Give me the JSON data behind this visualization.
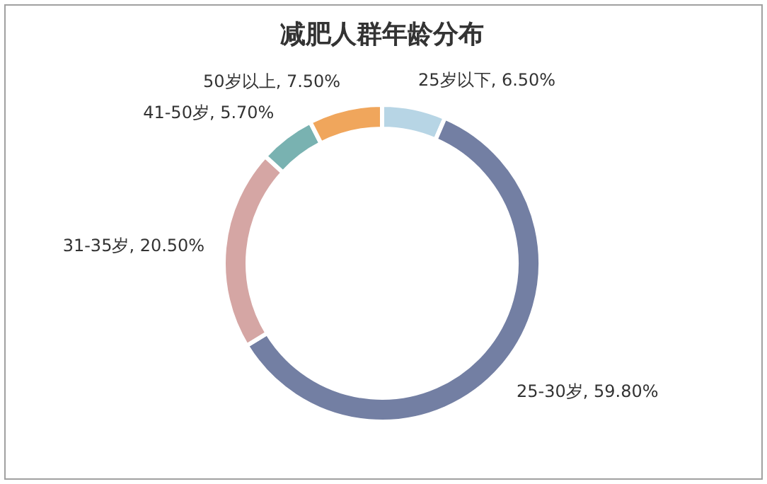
{
  "chart_data": {
    "type": "donut",
    "title": "减肥人群年龄分布",
    "categories": [
      "25岁以下",
      "25-30岁",
      "31-35岁",
      "41-50岁",
      "50岁以上"
    ],
    "values": [
      6.5,
      59.8,
      20.5,
      5.7,
      7.5
    ],
    "value_labels": [
      "6.50%",
      "59.80%",
      "20.50%",
      "5.70%",
      "7.50%"
    ],
    "colors": [
      "#b7d5e5",
      "#737fa3",
      "#d5a6a4",
      "#79b2b1",
      "#f0a65c"
    ]
  }
}
